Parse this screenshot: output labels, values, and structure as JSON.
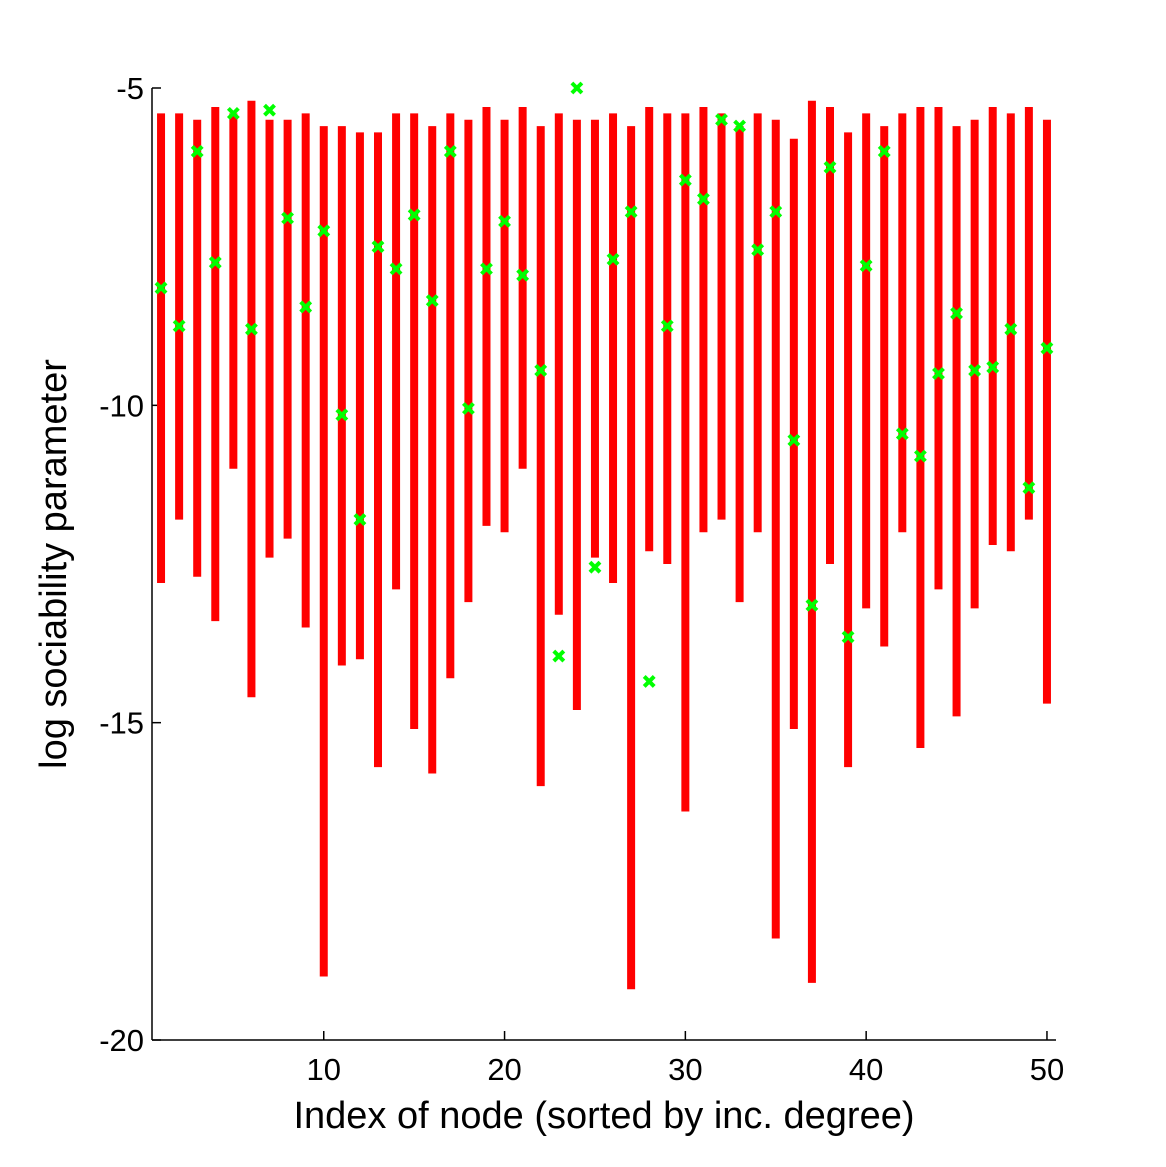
{
  "chart_data": {
    "type": "scatter",
    "title": "",
    "xlabel": "Index of node (sorted by inc. degree)",
    "ylabel": "log sociability parameter",
    "xlim": [
      0.5,
      50.5
    ],
    "ylim": [
      -20,
      -5
    ],
    "xticks": [
      10,
      20,
      30,
      40,
      50
    ],
    "yticks": [
      -5,
      -10,
      -15,
      -20
    ],
    "grid": false,
    "legend": "none",
    "colors": {
      "interval": "#ff0000",
      "estimate": "#00ff00"
    },
    "series": [
      {
        "kind": "interval",
        "x": [
          1,
          2,
          3,
          4,
          5,
          6,
          7,
          8,
          9,
          10,
          11,
          12,
          13,
          14,
          15,
          16,
          17,
          18,
          19,
          20,
          21,
          22,
          23,
          24,
          25,
          26,
          27,
          28,
          29,
          30,
          31,
          32,
          33,
          34,
          35,
          36,
          37,
          38,
          39,
          40,
          41,
          42,
          43,
          44,
          45,
          46,
          47,
          48,
          49,
          50
        ],
        "low": [
          -12.8,
          -11.8,
          -12.7,
          -13.4,
          -11.0,
          -14.6,
          -12.4,
          -12.1,
          -13.5,
          -19.0,
          -14.1,
          -14.0,
          -15.7,
          -12.9,
          -15.1,
          -15.8,
          -14.3,
          -13.1,
          -11.9,
          -12.0,
          -11.0,
          -16.0,
          -13.3,
          -14.8,
          -12.4,
          -12.8,
          -19.2,
          -12.3,
          -12.5,
          -16.4,
          -12.0,
          -11.8,
          -13.1,
          -12.0,
          -18.4,
          -15.1,
          -19.1,
          -12.5,
          -15.7,
          -13.2,
          -13.8,
          -12.0,
          -15.4,
          -12.9,
          -14.9,
          -13.2,
          -12.2,
          -12.3,
          -11.8,
          -14.7
        ],
        "high": [
          -5.4,
          -5.4,
          -5.5,
          -5.3,
          -5.4,
          -5.2,
          -5.5,
          -5.5,
          -5.4,
          -5.6,
          -5.6,
          -5.7,
          -5.7,
          -5.4,
          -5.4,
          -5.6,
          -5.4,
          -5.5,
          -5.3,
          -5.5,
          -5.3,
          -5.6,
          -5.4,
          -5.5,
          -5.5,
          -5.4,
          -5.6,
          -5.3,
          -5.4,
          -5.4,
          -5.3,
          -5.4,
          -5.6,
          -5.4,
          -5.5,
          -5.8,
          -5.2,
          -5.3,
          -5.7,
          -5.4,
          -5.6,
          -5.4,
          -5.3,
          -5.3,
          -5.6,
          -5.5,
          -5.3,
          -5.4,
          -5.3,
          -5.5
        ]
      },
      {
        "kind": "estimate",
        "x": [
          1,
          2,
          3,
          4,
          5,
          6,
          7,
          8,
          9,
          10,
          11,
          12,
          13,
          14,
          15,
          16,
          17,
          18,
          19,
          20,
          21,
          22,
          23,
          24,
          25,
          26,
          27,
          28,
          29,
          30,
          31,
          32,
          33,
          34,
          35,
          36,
          37,
          38,
          39,
          40,
          41,
          42,
          43,
          44,
          45,
          46,
          47,
          48,
          49,
          50
        ],
        "y": [
          -8.15,
          -8.75,
          -6.0,
          -7.75,
          -5.4,
          -8.8,
          -5.35,
          -7.05,
          -8.45,
          -7.25,
          -10.15,
          -11.8,
          -7.5,
          -7.85,
          -7.0,
          -8.35,
          -6.0,
          -10.05,
          -7.85,
          -7.1,
          -7.95,
          -9.45,
          -13.95,
          -5.0,
          -12.55,
          -7.7,
          -6.95,
          -14.35,
          -8.75,
          -6.45,
          -6.75,
          -5.5,
          -5.6,
          -7.55,
          -6.95,
          -10.55,
          -13.15,
          -6.25,
          -13.65,
          -7.8,
          -6.0,
          -10.45,
          -10.8,
          -9.5,
          -8.55,
          -9.45,
          -9.4,
          -8.8,
          -11.3,
          -9.1
        ]
      }
    ]
  }
}
